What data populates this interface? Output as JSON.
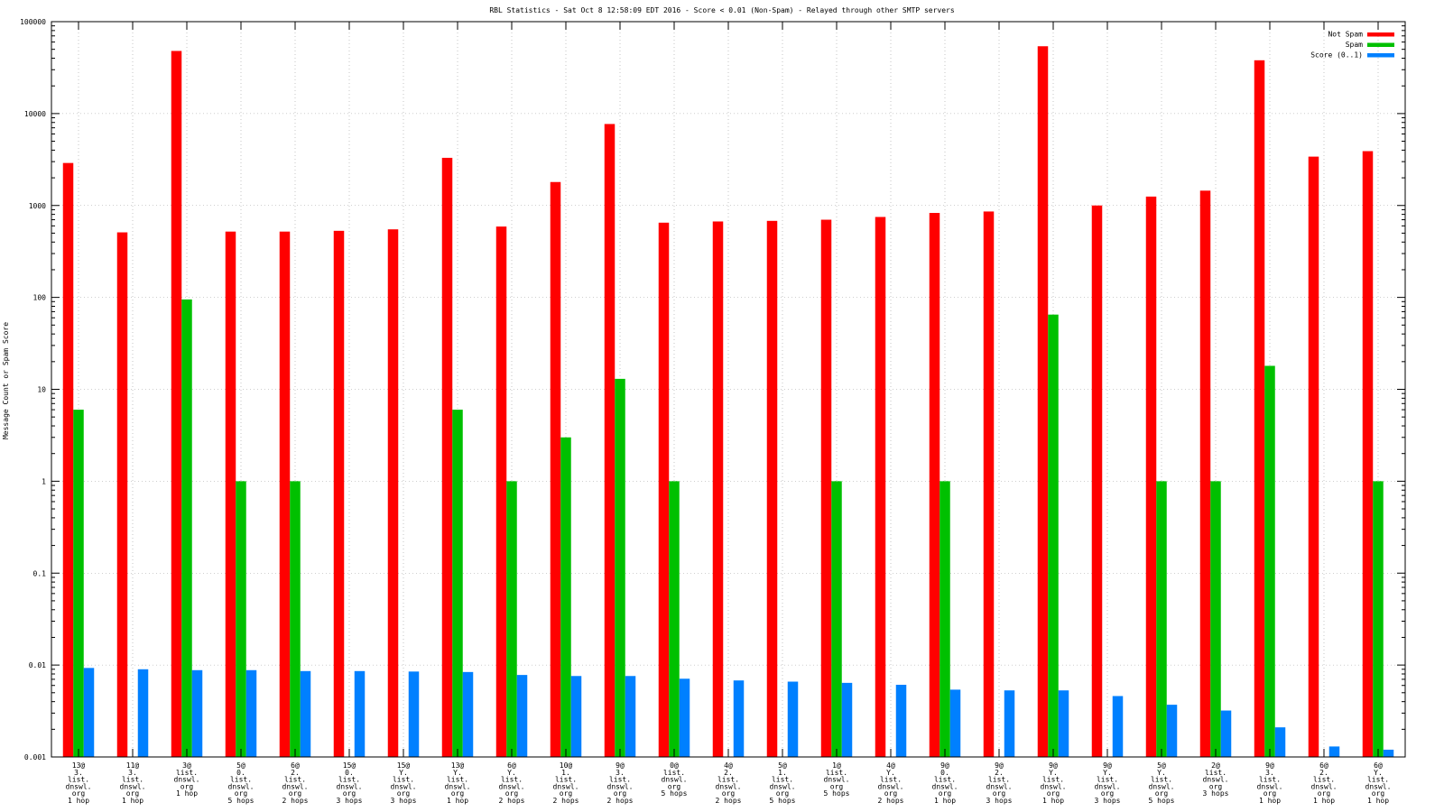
{
  "chart_data": {
    "type": "bar",
    "title": "RBL Statistics - Sat Oct  8 12:58:09 EDT 2016 - Score < 0.01 (Non-Spam) - Relayed through other SMTP servers",
    "xlabel": "",
    "ylabel": "Message Count or Spam Score",
    "yscale": "log",
    "ylim": [
      0.001,
      100000
    ],
    "y_tick_labels": [
      "0.001",
      "0.01",
      "0.1",
      "1",
      "10",
      "100",
      "1000",
      "10000",
      "100000"
    ],
    "grid": true,
    "legend_position": "top-right",
    "categories": [
      [
        "13@",
        "3.",
        "list.",
        "dnswl.",
        "org",
        "1 hop"
      ],
      [
        "11@",
        "3.",
        "list.",
        "dnswl.",
        "org",
        "1 hop"
      ],
      [
        "3@",
        "list.",
        "dnswl.",
        "org",
        "1 hop"
      ],
      [
        "5@",
        "0.",
        "list.",
        "dnswl.",
        "org",
        "5 hops"
      ],
      [
        "6@",
        "2.",
        "list.",
        "dnswl.",
        "org",
        "2 hops"
      ],
      [
        "15@",
        "0.",
        "list.",
        "dnswl.",
        "org",
        "3 hops"
      ],
      [
        "15@",
        "Y.",
        "list.",
        "dnswl.",
        "org",
        "3 hops"
      ],
      [
        "13@",
        "Y.",
        "list.",
        "dnswl.",
        "org",
        "1 hop"
      ],
      [
        "6@",
        "Y.",
        "list.",
        "dnswl.",
        "org",
        "2 hops"
      ],
      [
        "10@",
        "1.",
        "list.",
        "dnswl.",
        "org",
        "2 hops"
      ],
      [
        "9@",
        "3.",
        "list.",
        "dnswl.",
        "org",
        "2 hops"
      ],
      [
        "0@",
        "list.",
        "dnswl.",
        "org",
        "5 hops"
      ],
      [
        "4@",
        "2.",
        "list.",
        "dnswl.",
        "org",
        "2 hops"
      ],
      [
        "5@",
        "1.",
        "list.",
        "dnswl.",
        "org",
        "5 hops"
      ],
      [
        "1@",
        "list.",
        "dnswl.",
        "org",
        "5 hops"
      ],
      [
        "4@",
        "Y.",
        "list.",
        "dnswl.",
        "org",
        "2 hops"
      ],
      [
        "9@",
        "0.",
        "list.",
        "dnswl.",
        "org",
        "1 hop"
      ],
      [
        "9@",
        "2.",
        "list.",
        "dnswl.",
        "org",
        "3 hops"
      ],
      [
        "9@",
        "Y.",
        "list.",
        "dnswl.",
        "org",
        "1 hop"
      ],
      [
        "9@",
        "Y.",
        "list.",
        "dnswl.",
        "org",
        "3 hops"
      ],
      [
        "5@",
        "Y.",
        "list.",
        "dnswl.",
        "org",
        "5 hops"
      ],
      [
        "2@",
        "list.",
        "dnswl.",
        "org",
        "3 hops"
      ],
      [
        "9@",
        "3.",
        "list.",
        "dnswl.",
        "org",
        "1 hop"
      ],
      [
        "6@",
        "2.",
        "list.",
        "dnswl.",
        "org",
        "1 hop"
      ],
      [
        "6@",
        "Y.",
        "list.",
        "dnswl.",
        "org",
        "1 hop"
      ]
    ],
    "series": [
      {
        "name": "Not Spam",
        "color": "#ff0000",
        "values": [
          2900,
          510,
          48000,
          520,
          520,
          530,
          550,
          3300,
          590,
          1800,
          7700,
          650,
          670,
          680,
          700,
          750,
          830,
          860,
          54000,
          1000,
          1250,
          1450,
          38000,
          3400,
          3900
        ]
      },
      {
        "name": "Spam",
        "color": "#00c000",
        "values": [
          6,
          null,
          95,
          1,
          1,
          null,
          null,
          6,
          1,
          3,
          13,
          1,
          null,
          null,
          1,
          null,
          1,
          null,
          65,
          null,
          1,
          1,
          18,
          null,
          1
        ]
      },
      {
        "name": "Score (0..1)",
        "color": "#0080ff",
        "values": [
          0.0093,
          0.009,
          0.0088,
          0.0088,
          0.0086,
          0.0086,
          0.0085,
          0.0084,
          0.0078,
          0.0076,
          0.0076,
          0.0071,
          0.0068,
          0.0066,
          0.0064,
          0.0061,
          0.0054,
          0.0053,
          0.0053,
          0.0046,
          0.0037,
          0.0032,
          0.0021,
          0.0013,
          0.0012
        ]
      }
    ]
  }
}
